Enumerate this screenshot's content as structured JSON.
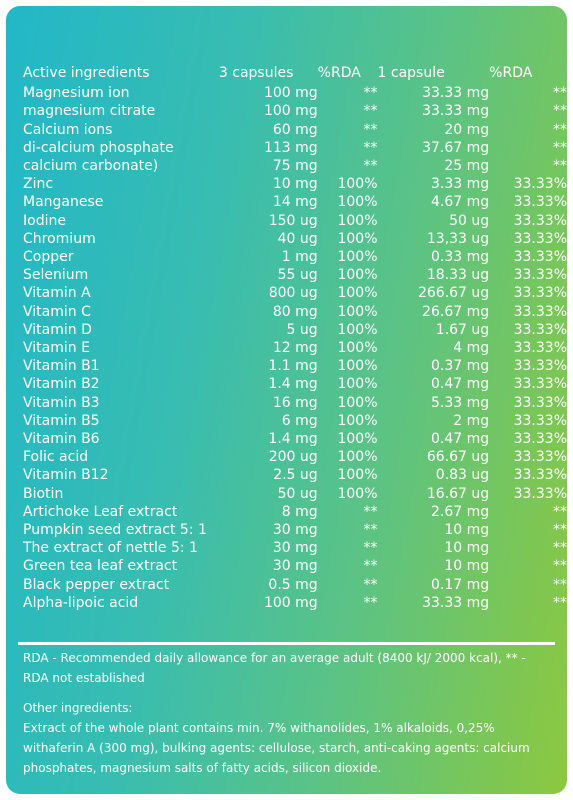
{
  "table": {
    "headers": [
      "Active ingredients",
      "3 capsules",
      "%RDA",
      "1 capsule",
      "%RDA"
    ],
    "rows": [
      [
        "Magnesium ion",
        "100 mg",
        "**",
        "33.33 mg",
        "**"
      ],
      [
        "magnesium citrate",
        "100 mg",
        "**",
        "33.33 mg",
        "**"
      ],
      [
        "Calcium ions",
        "60 mg",
        "**",
        "20 mg",
        "**"
      ],
      [
        "di-calcium phosphate",
        "113 mg",
        "**",
        "37.67 mg",
        "**"
      ],
      [
        "calcium carbonate)",
        "75 mg",
        "**",
        "25 mg",
        "**"
      ],
      [
        "Zinc",
        "10 mg",
        "100%",
        "3.33 mg",
        "33.33%"
      ],
      [
        "Manganese",
        "14 mg",
        "100%",
        "4.67 mg",
        "33.33%"
      ],
      [
        "Iodine",
        "150 ug",
        "100%",
        "50 ug",
        "33.33%"
      ],
      [
        "Chromium",
        "40 ug",
        "100%",
        "13,33 ug",
        "33.33%"
      ],
      [
        "Copper",
        "1 mg",
        "100%",
        "0.33 mg",
        "33.33%"
      ],
      [
        "Selenium",
        "55 ug",
        "100%",
        "18.33 ug",
        "33.33%"
      ],
      [
        "Vitamin A",
        "800 ug",
        "100%",
        "266.67 ug",
        "33.33%"
      ],
      [
        "Vitamin C",
        "80 mg",
        "100%",
        "26.67 mg",
        "33.33%"
      ],
      [
        "Vitamin D",
        "5 ug",
        "100%",
        "1.67 ug",
        "33.33%"
      ],
      [
        "Vitamin E",
        "12 mg",
        "100%",
        "4 mg",
        "33.33%"
      ],
      [
        "Vitamin B1",
        "1.1 mg",
        "100%",
        "0.37 mg",
        "33.33%"
      ],
      [
        "Vitamin B2",
        "1.4 mg",
        "100%",
        "0.47 mg",
        "33.33%"
      ],
      [
        "Vitamin B3",
        "16 mg",
        "100%",
        "5.33 mg",
        "33.33%"
      ],
      [
        "Vitamin B5",
        "6 mg",
        "100%",
        "2 mg",
        "33.33%"
      ],
      [
        "Vitamin B6",
        "1.4 mg",
        "100%",
        "0.47 mg",
        "33.33%"
      ],
      [
        "Folic acid",
        "200 ug",
        "100%",
        "66.67 ug",
        "33.33%"
      ],
      [
        "Vitamin B12",
        "2.5 ug",
        "100%",
        "0.83 ug",
        "33.33%"
      ],
      [
        "Biotin",
        "50 ug",
        "100%",
        "16.67 ug",
        "33.33%"
      ],
      [
        "Artichoke Leaf extract",
        "8 mg",
        "**",
        "2.67 mg",
        "**"
      ],
      [
        "Pumpkin seed extract 5: 1",
        "30 mg",
        "**",
        "10 mg",
        "**"
      ],
      [
        "The extract of nettle 5: 1",
        "30 mg",
        "**",
        "10 mg",
        "**"
      ],
      [
        "Green tea leaf extract",
        "30 mg",
        "**",
        "10 mg",
        "**"
      ],
      [
        "Black pepper extract",
        "0.5 mg",
        "**",
        "0.17 mg",
        "**"
      ],
      [
        "Alpha-lipoic acid",
        "100 mg",
        "**",
        "33.33 mg",
        "**"
      ]
    ]
  },
  "notes": {
    "rda": "RDA - Recommended daily allowance for an average adult (8400 kJ/ 2000 kcal), ** - RDA not established",
    "other_title": "Other ingredients:",
    "other_text": "Extract of the whole plant contains min. 7% withanolides, 1% alkaloids, 0,25% withaferin A (300 mg), bulking agents: cellulose, starch, anti-caking agents: calcium phosphates, magnesium salts of fatty acids, silicon dioxide."
  },
  "colors": {
    "gradient_start": "#22b7c8",
    "gradient_end": "#8cc83e",
    "text": "#ffffff"
  }
}
